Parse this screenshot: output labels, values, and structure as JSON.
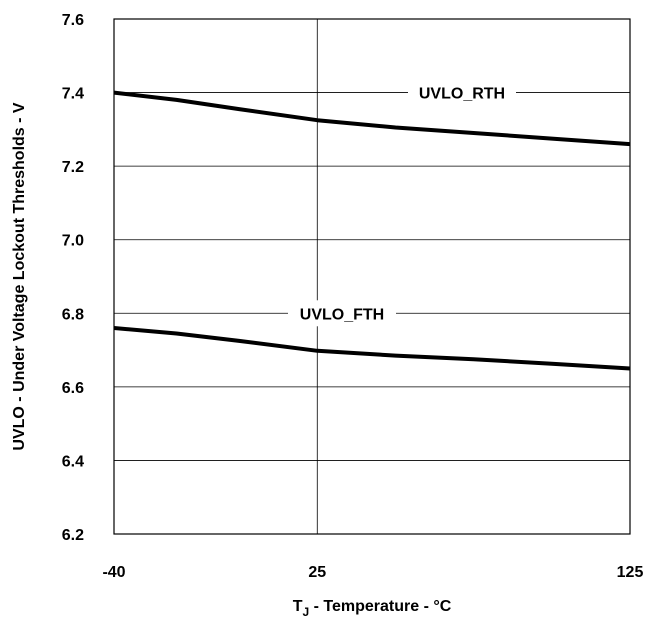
{
  "chart_data": {
    "type": "line",
    "xlabel": {
      "main": "T",
      "sub": "J",
      "rest": " - Temperature - °C"
    },
    "ylabel": "UVLO - Under Voltage Lockout Thresholds - V",
    "x_ticks": [
      "-40",
      "25",
      "125"
    ],
    "x_tick_values": [
      -40,
      25,
      125
    ],
    "y_ticks": [
      "6.2",
      "6.4",
      "6.6",
      "6.8",
      "7.0",
      "7.2",
      "7.4",
      "7.6"
    ],
    "y_tick_values": [
      6.2,
      6.4,
      6.6,
      6.8,
      7.0,
      7.2,
      7.4,
      7.6
    ],
    "xlim": [
      -40,
      125
    ],
    "ylim": [
      6.2,
      7.6
    ],
    "grid": true,
    "series": [
      {
        "name": "UVLO_RTH",
        "x": [
          -40,
          -20,
          0,
          25,
          50,
          75,
          100,
          125
        ],
        "values": [
          7.4,
          7.38,
          7.355,
          7.325,
          7.305,
          7.29,
          7.275,
          7.26
        ]
      },
      {
        "name": "UVLO_FTH",
        "x": [
          -40,
          -20,
          0,
          25,
          50,
          75,
          100,
          125
        ],
        "values": [
          6.76,
          6.745,
          6.725,
          6.698,
          6.685,
          6.675,
          6.663,
          6.65
        ]
      }
    ],
    "line_color": "#000000"
  }
}
